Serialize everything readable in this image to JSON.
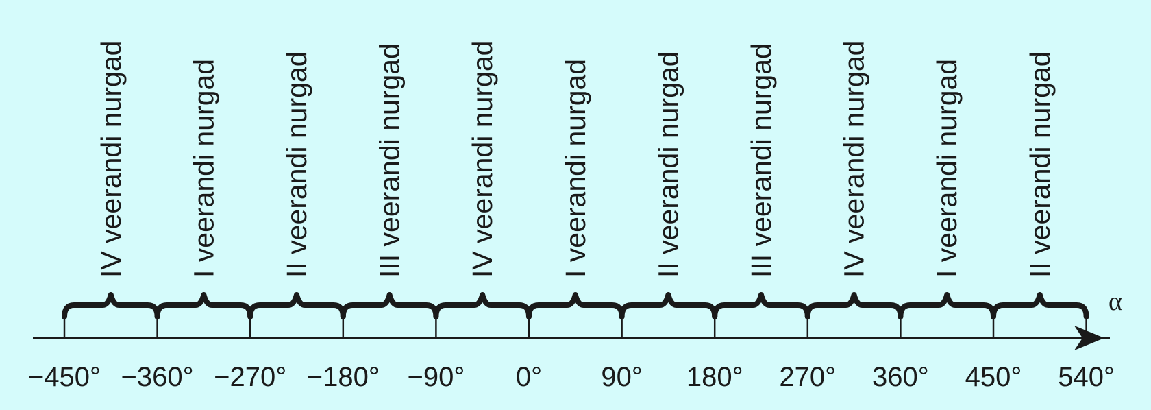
{
  "axis": {
    "label": "α",
    "ticks": [
      "−450°",
      "−360°",
      "−270°",
      "−180°",
      "−90°",
      "0°",
      "90°",
      "180°",
      "270°",
      "360°",
      "450°",
      "540°"
    ]
  },
  "intervals": [
    "IV veerandi nurgad",
    "I veerandi nurgad",
    "II veerandi nurgad",
    "III veerandi nurgad",
    "IV veerandi nurgad",
    "I veerandi nurgad",
    "II veerandi nurgad",
    "III veerandi nurgad",
    "IV veerandi nurgad",
    "I veerandi nurgad",
    "II veerandi nurgad"
  ]
}
